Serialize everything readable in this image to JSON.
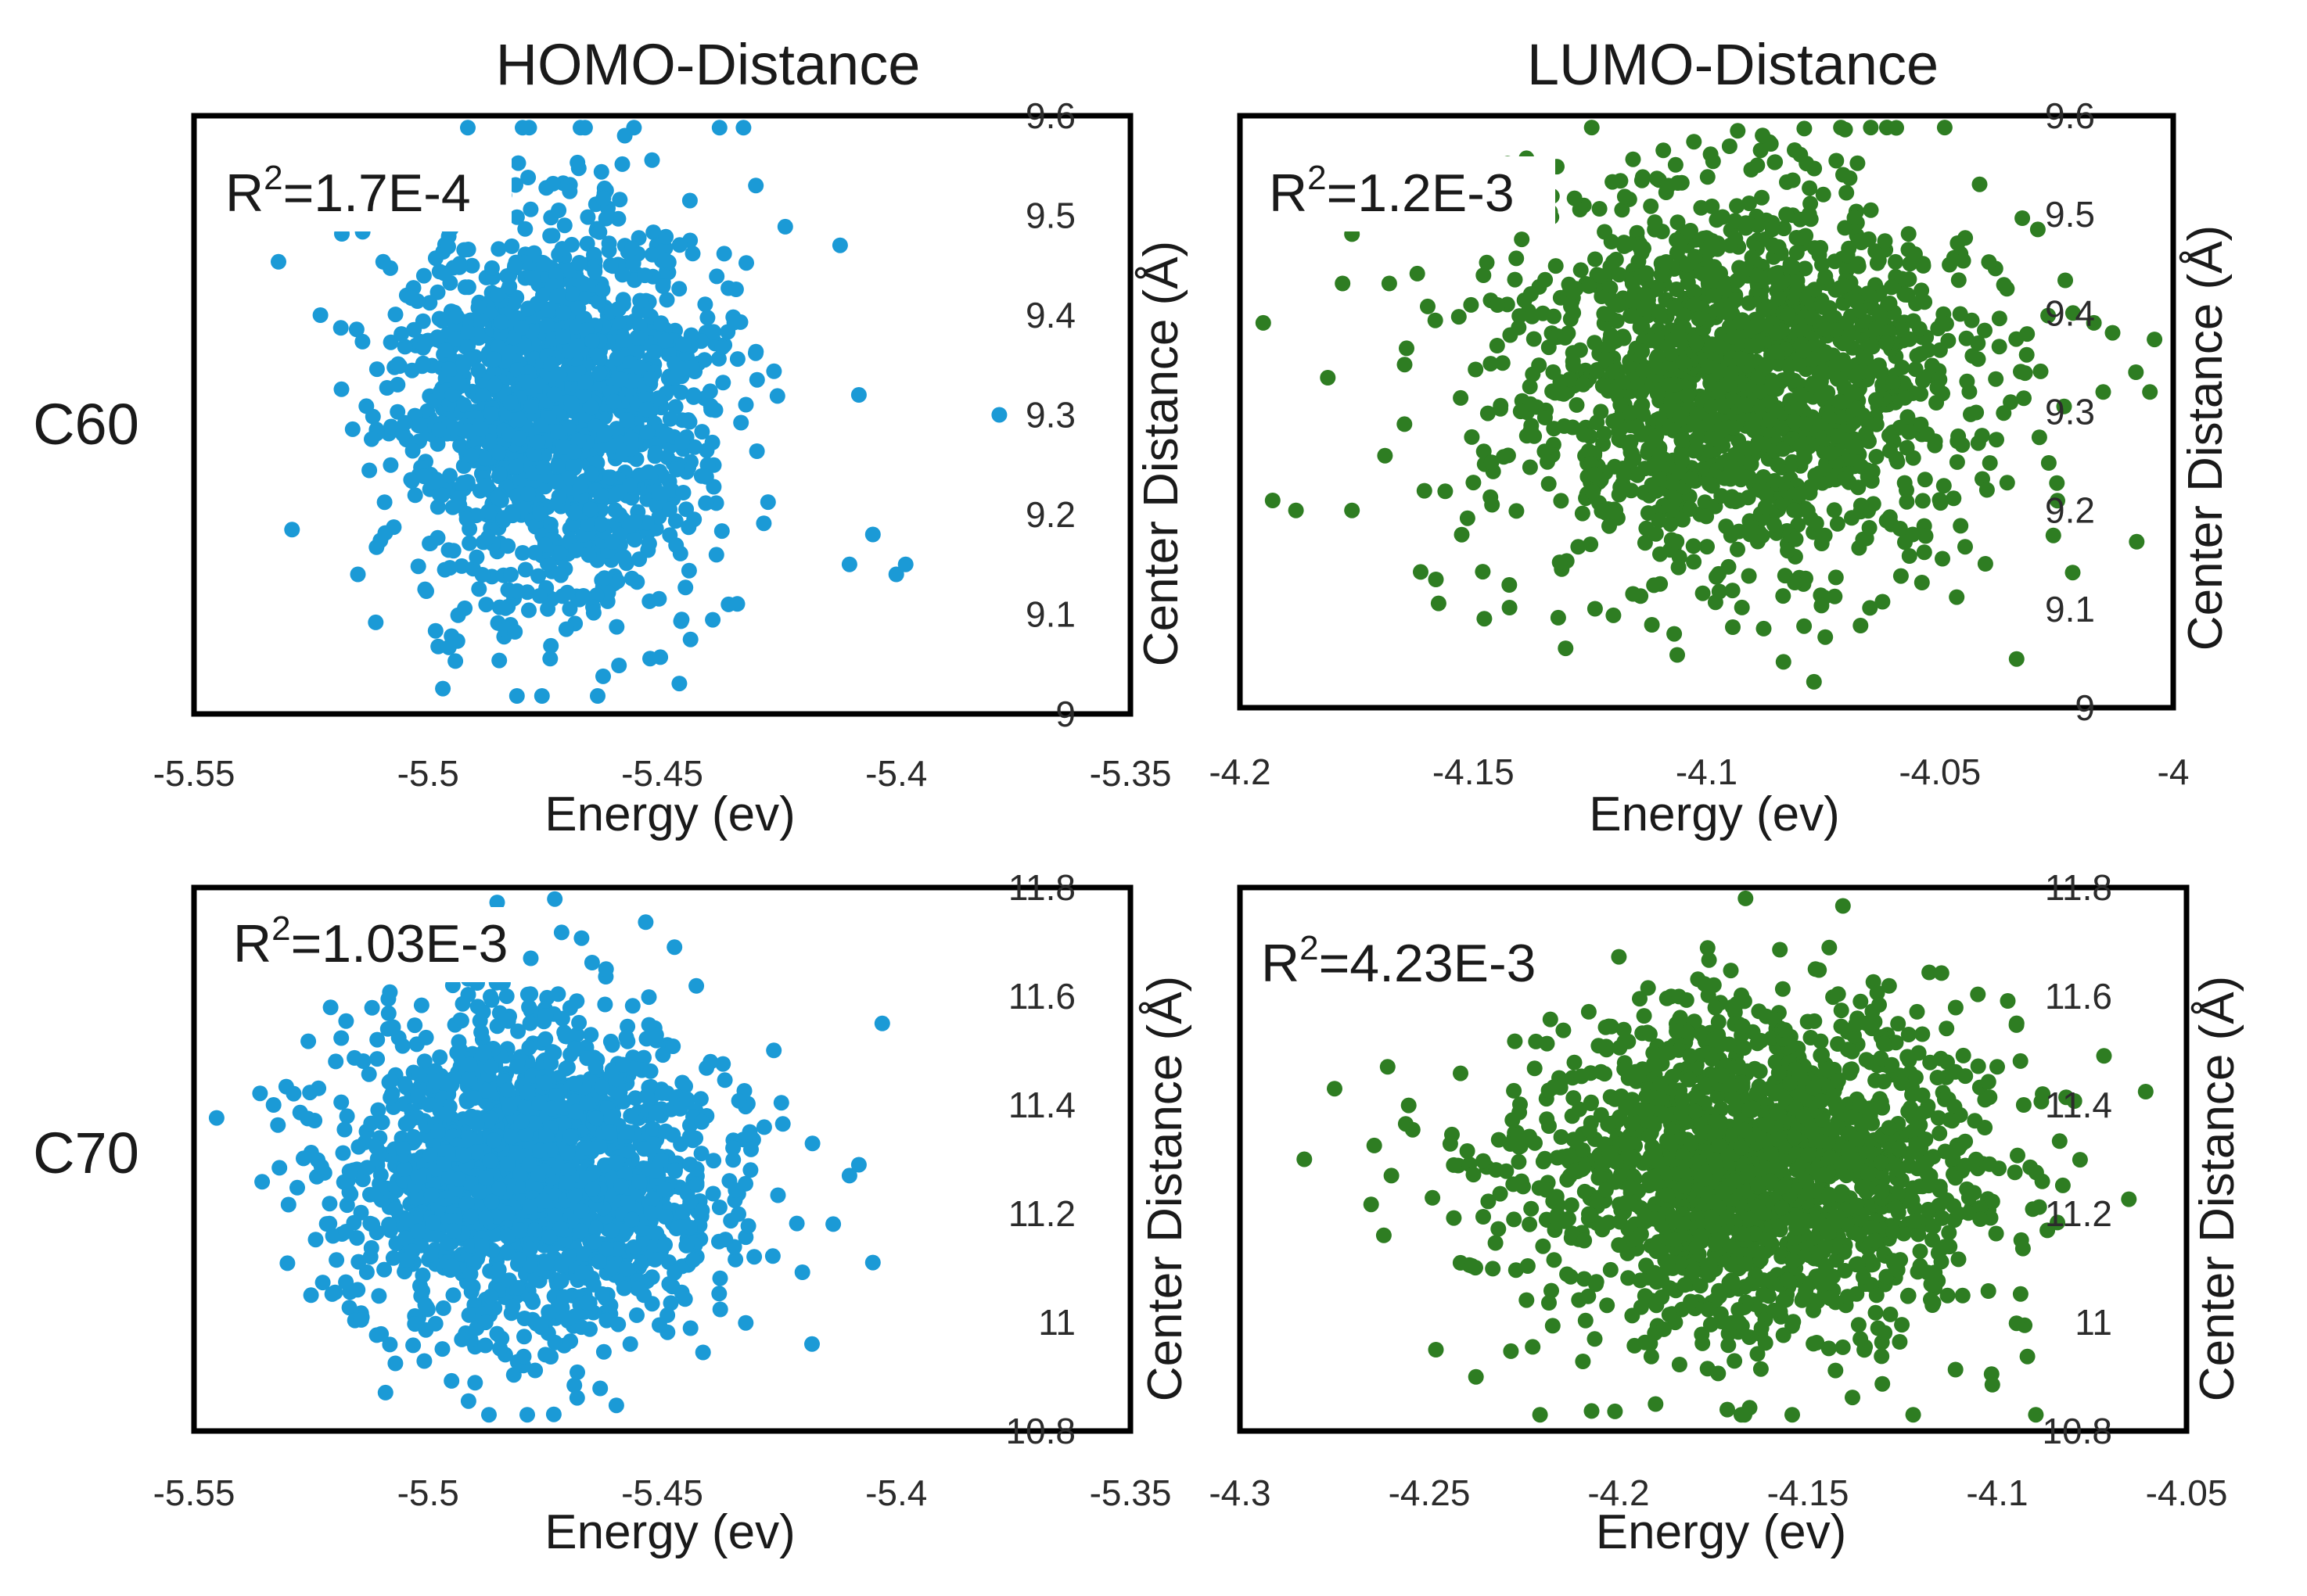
{
  "figure": {
    "column_titles": [
      "HOMO-Distance",
      "LUMO-Distance"
    ],
    "row_labels": [
      "C60",
      "C70"
    ]
  },
  "chart_data": [
    {
      "type": "scatter",
      "row": "C60",
      "column": "HOMO-Distance",
      "xlabel": "Energy (ev)",
      "ylabel": "Center Distance (Å)",
      "xlim": [
        -5.55,
        -5.35
      ],
      "ylim": [
        9.0,
        9.6
      ],
      "xticks": [
        "-5.55",
        "-5.5",
        "-5.45",
        "-5.4",
        "-5.35"
      ],
      "yticks": [
        "9",
        "9.1",
        "9.2",
        "9.3",
        "9.4",
        "9.5",
        "9.6"
      ],
      "annotation": {
        "prefix": "R",
        "sup": "2",
        "value": "=1.7E-4"
      },
      "color": "#1b9ad6",
      "cloud": {
        "n": 1500,
        "x_mean": -5.473,
        "x_sd": 0.017,
        "y_mean": 9.31,
        "y_sd": 0.1,
        "seed": 11
      },
      "outliers": [
        [
          -5.523,
          9.4
        ],
        [
          -5.515,
          9.14
        ],
        [
          -5.41,
          9.15
        ],
        [
          -5.405,
          9.18
        ],
        [
          -5.4,
          9.14
        ],
        [
          -5.398,
          9.15
        ],
        [
          -5.378,
          9.3
        ],
        [
          -5.458,
          9.58
        ],
        [
          -5.43,
          9.53
        ],
        [
          -5.412,
          9.47
        ],
        [
          -5.408,
          9.32
        ]
      ]
    },
    {
      "type": "scatter",
      "row": "C60",
      "column": "LUMO-Distance",
      "xlabel": "Energy (ev)",
      "ylabel": "Center Distance (Å)",
      "xlim": [
        -4.2,
        -4.0
      ],
      "ylim": [
        9.0,
        9.6
      ],
      "xticks": [
        "-4.2",
        "-4.15",
        "-4.1",
        "-4.05",
        "-4"
      ],
      "yticks": [
        "9",
        "9.1",
        "9.2",
        "9.3",
        "9.4",
        "9.5",
        "9.6"
      ],
      "annotation": {
        "prefix": "R",
        "sup": "2",
        "value": "=1.2E-3"
      },
      "color": "#2e7d22",
      "cloud": {
        "n": 1600,
        "x_mean": -4.093,
        "x_sd": 0.025,
        "y_mean": 9.33,
        "y_sd": 0.1,
        "seed": 23
      },
      "outliers": [
        [
          -4.195,
          9.39
        ],
        [
          -4.193,
          9.21
        ],
        [
          -4.188,
          9.2
        ],
        [
          -4.176,
          9.48
        ],
        [
          -4.178,
          9.43
        ],
        [
          -4.176,
          9.2
        ],
        [
          -4.168,
          9.43
        ],
        [
          -4.162,
          9.44
        ],
        [
          -4.158,
          9.13
        ],
        [
          -4.017,
          9.39
        ],
        [
          -4.015,
          9.32
        ],
        [
          -4.008,
          9.34
        ],
        [
          -4.005,
          9.32
        ],
        [
          -4.013,
          9.38
        ],
        [
          -4.088,
          9.58
        ]
      ]
    },
    {
      "type": "scatter",
      "row": "C70",
      "column": "HOMO-Distance",
      "xlabel": "Energy (ev)",
      "ylabel": "Center Distance (Å)",
      "xlim": [
        -5.55,
        -5.35
      ],
      "ylim": [
        10.8,
        11.8
      ],
      "xticks": [
        "-5.55",
        "-5.5",
        "-5.45",
        "-5.4",
        "-5.35"
      ],
      "yticks": [
        "10.8",
        "11",
        "11.2",
        "11.4",
        "11.6",
        "11.8"
      ],
      "annotation": {
        "prefix": "R",
        "sup": "2",
        "value": "=1.03E-3"
      },
      "color": "#1b9ad6",
      "cloud": {
        "n": 1800,
        "x_mean": -5.478,
        "x_sd": 0.02,
        "y_mean": 11.27,
        "y_sd": 0.15,
        "seed": 37
      },
      "outliers": [
        [
          -5.533,
          11.4
        ],
        [
          -5.525,
          11.05
        ],
        [
          -5.405,
          11.11
        ],
        [
          -5.403,
          11.55
        ],
        [
          -5.41,
          11.27
        ],
        [
          -5.408,
          11.29
        ],
        [
          -5.418,
          10.96
        ],
        [
          -5.462,
          11.65
        ]
      ]
    },
    {
      "type": "scatter",
      "row": "C70",
      "column": "LUMO-Distance",
      "xlabel": "Energy (ev)",
      "ylabel": "Center Distance (Å)",
      "xlim": [
        -4.3,
        -4.05
      ],
      "ylim": [
        10.8,
        11.8
      ],
      "xticks": [
        "-4.3",
        "-4.25",
        "-4.2",
        "-4.15",
        "-4.1",
        "-4.05"
      ],
      "yticks": [
        "10.8",
        "11",
        "11.2",
        "11.4",
        "11.6",
        "11.8"
      ],
      "annotation": {
        "prefix": "R",
        "sup": "2",
        "value": "=4.23E-3"
      },
      "color": "#2e7d22",
      "cloud": {
        "n": 1800,
        "x_mean": -4.163,
        "x_sd": 0.03,
        "y_mean": 11.28,
        "y_sd": 0.15,
        "seed": 53
      },
      "outliers": [
        [
          -4.283,
          11.3
        ],
        [
          -4.275,
          11.43
        ],
        [
          -4.261,
          11.47
        ],
        [
          -4.26,
          11.27
        ],
        [
          -4.262,
          11.16
        ],
        [
          -4.093,
          11.4
        ],
        [
          -4.088,
          11.42
        ],
        [
          -4.1,
          11.47
        ],
        [
          -4.148,
          11.65
        ]
      ]
    }
  ]
}
